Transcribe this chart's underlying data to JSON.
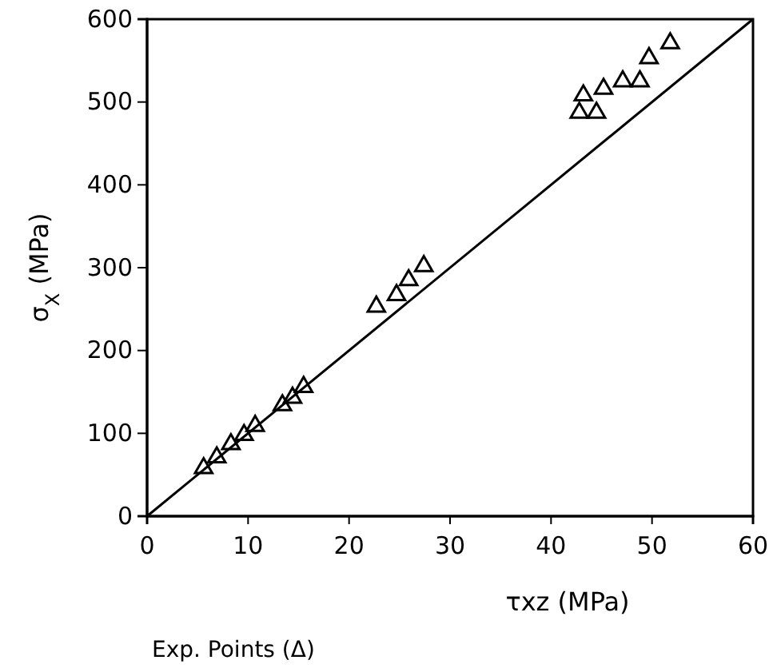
{
  "chart_data": {
    "type": "scatter",
    "xlabel": "τxz (MPa)",
    "ylabel": "σ$_{X}$ (MPa)",
    "annotations": [
      "Exp. Points (Δ)"
    ],
    "xlim": [
      0,
      60
    ],
    "ylim": [
      0,
      600
    ],
    "xticks": [
      0,
      10,
      20,
      30,
      40,
      50,
      60
    ],
    "yticks": [
      0,
      100,
      200,
      300,
      400,
      500,
      600
    ],
    "grid": false,
    "marker": "triangle",
    "series": [
      {
        "color": "#000000",
        "x": [
          5.6,
          6.9,
          8.3,
          9.6,
          10.7,
          13.4,
          14.4,
          15.5,
          22.7,
          24.7,
          25.9,
          27.4,
          42.8,
          43.2,
          44.5,
          45.2,
          47.1,
          48.8,
          49.7,
          51.8
        ],
        "values": [
          58,
          71,
          87,
          98,
          109,
          134,
          143,
          156,
          253,
          267,
          285,
          302,
          487,
          508,
          487,
          516,
          525,
          525,
          553,
          571
        ]
      },
      {
        "type": "line",
        "color": "#000000",
        "line_style": "solid",
        "marker": "none",
        "x": [
          0,
          60
        ],
        "values": [
          0,
          600
        ]
      }
    ]
  }
}
